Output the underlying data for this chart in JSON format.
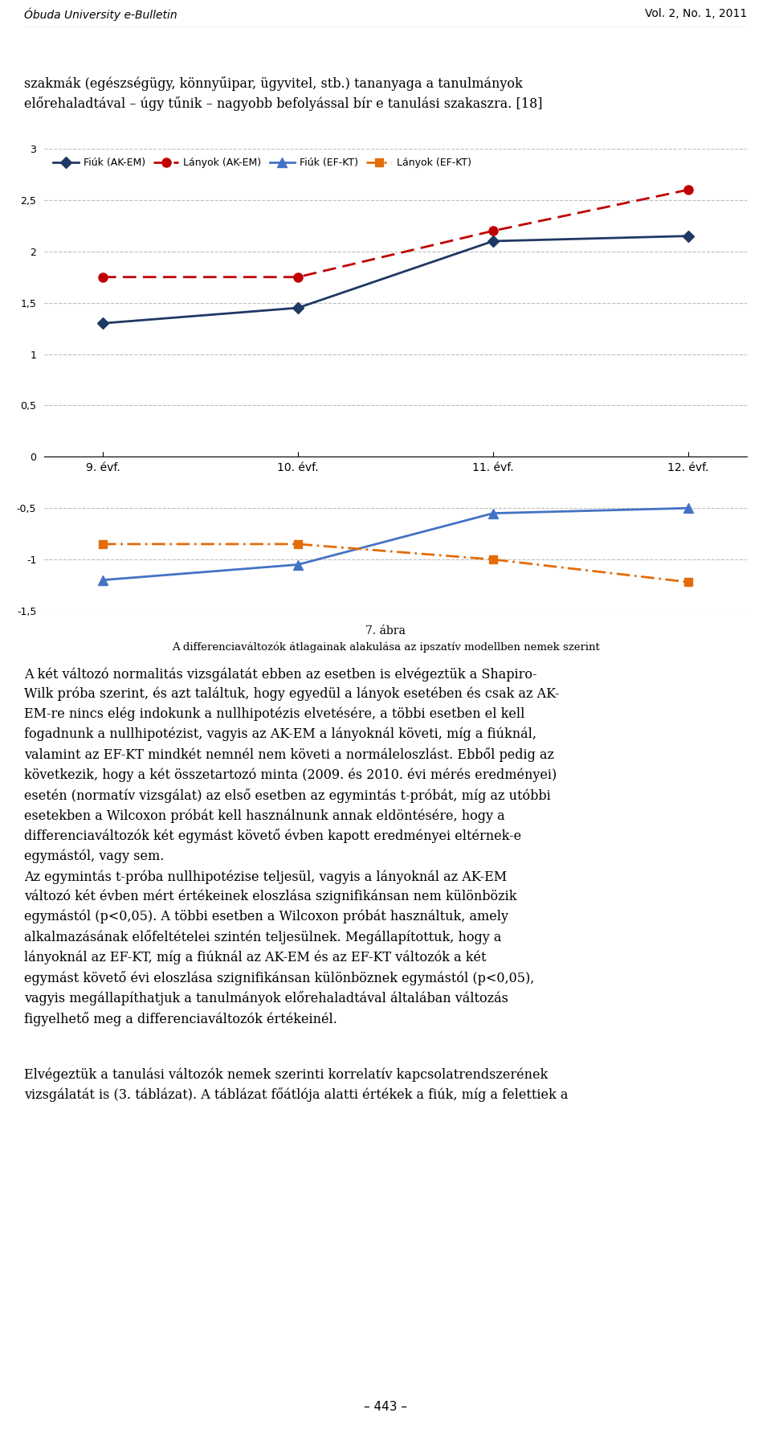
{
  "x_labels": [
    "9. évf.",
    "10. évf.",
    "11. évf.",
    "12. évf."
  ],
  "x_values": [
    0,
    1,
    2,
    3
  ],
  "series": [
    {
      "label": "Fiúk (AK-EM)",
      "values": [
        1.3,
        1.45,
        2.1,
        2.15
      ],
      "color": "#1F3864",
      "linestyle": "solid",
      "marker": "D",
      "markersize": 7,
      "linewidth": 2.0,
      "dashes": null
    },
    {
      "label": "Lányok (AK-EM)",
      "values": [
        1.75,
        1.75,
        2.2,
        2.6
      ],
      "color": "#C00000",
      "linestyle": "dashed",
      "marker": "o",
      "markersize": 8,
      "linewidth": 2.0,
      "dashes": [
        6,
        3
      ]
    },
    {
      "label": "Fiúk (EF-KT)",
      "values": [
        -1.2,
        -1.05,
        -0.55,
        -0.5
      ],
      "color": "#4472C4",
      "linestyle": "solid",
      "marker": "^",
      "markersize": 8,
      "linewidth": 2.0,
      "dashes": null
    },
    {
      "label": "Lányok (EF-KT)",
      "values": [
        -0.85,
        -0.85,
        -1.0,
        -1.22
      ],
      "color": "#E36C09",
      "linestyle": "dashdot",
      "marker": "s",
      "markersize": 7,
      "linewidth": 2.0,
      "dashes": [
        6,
        2,
        1,
        2
      ]
    }
  ],
  "ylim": [
    -1.5,
    3.0
  ],
  "yticks": [
    -1.5,
    -1.0,
    -0.5,
    0.0,
    0.5,
    1.0,
    1.5,
    2.0,
    2.5,
    3.0
  ],
  "ytick_labels": [
    "-1,5",
    "-1",
    "-0,5",
    "0",
    "0,5",
    "1",
    "1,5",
    "2",
    "2,5",
    "3"
  ],
  "grid_color": "#BEBEBE",
  "background_color": "#FFFFFF",
  "fig_title_left": "Óbuda University e-Bulletin",
  "fig_title_right": "Vol. 2, No. 1, 2011",
  "chart_caption_line1": "7. ábra",
  "chart_caption_line2": "A differenciaváltozók átlagainak alakulása az ipszatív modellben nemek szerint",
  "intro_text": "szakmák (egészségügy, könnyűipar, ügyvitel, stb.) tananyaga a tanulmányok\nelőrehaladtával – úgy tűnik – nagyobb befolyással bír e tanulási szakaszra. [18]",
  "body1": "A két változó normalitás vizsgálatát ebben az esetben is elvégeztük a Shapiro-\nWilk próba szerint, és azt találtuk, hogy egyedül a lányok esetében és csak az AK-\nEM-re nincs elég indokunk a nullhipotézis elvetésére, a többi esetben el kell\nfogadnunk a nullhipotézist, vagyis az AK-EM a lányoknál követi, míg a fiúknál,\nvalamint az EF-KT mindkét nemnél nem követi a normáleloszlást. Ebből pedig az\nkövetkezik, hogy a két összetartozó minta (2009. és 2010. évi mérés eredményei)\nesetén (normatív vizsgálat) az első esetben az egymintás t-próbát, míg az utóbbi\nesetekben a Wilcoxon próbát kell használnunk annak eldöntésére, hogy a\ndifferenciaváltozók két egymást követő évben kapott eredményei eltérnek-e\negymástól, vagy sem.",
  "body2": "Az egymintás t-próba nullhipotézise teljesül, vagyis a lányoknál az AK-EM\nváltozó két évben mért értékeinek eloszlása szignifikánsan nem különbözik\negymástól (p<0,05). A többi esetben a Wilcoxon próbát használtuk, amely\nalkalmazásának előfeltételei szintén teljesülnek. Megállapítottuk, hogy a\nlányoknál az EF-KT, míg a fiúknál az AK-EM és az EF-KT változók a két\negymást követő évi eloszlása szignifikánsan különböznek egymástól (p<0,05),\nvagyis megállapíthatjuk a tanulmányok előrehaladtával általában változás\nfigyelhető meg a differenciaváltozók értékeinél.",
  "body3": "Elvégeztük a tanulási változók nemek szerinti korrelatív kapcsolatrendszerének\nvizsgálatát is (3. táblázat). A táblázat főátlója alatti értékek a fiúk, míg a felettiek a",
  "page_number": "– 443 –",
  "legend_fontsize": 9,
  "axis_fontsize": 9,
  "body_fontsize": 11.5,
  "header_fontsize": 10
}
